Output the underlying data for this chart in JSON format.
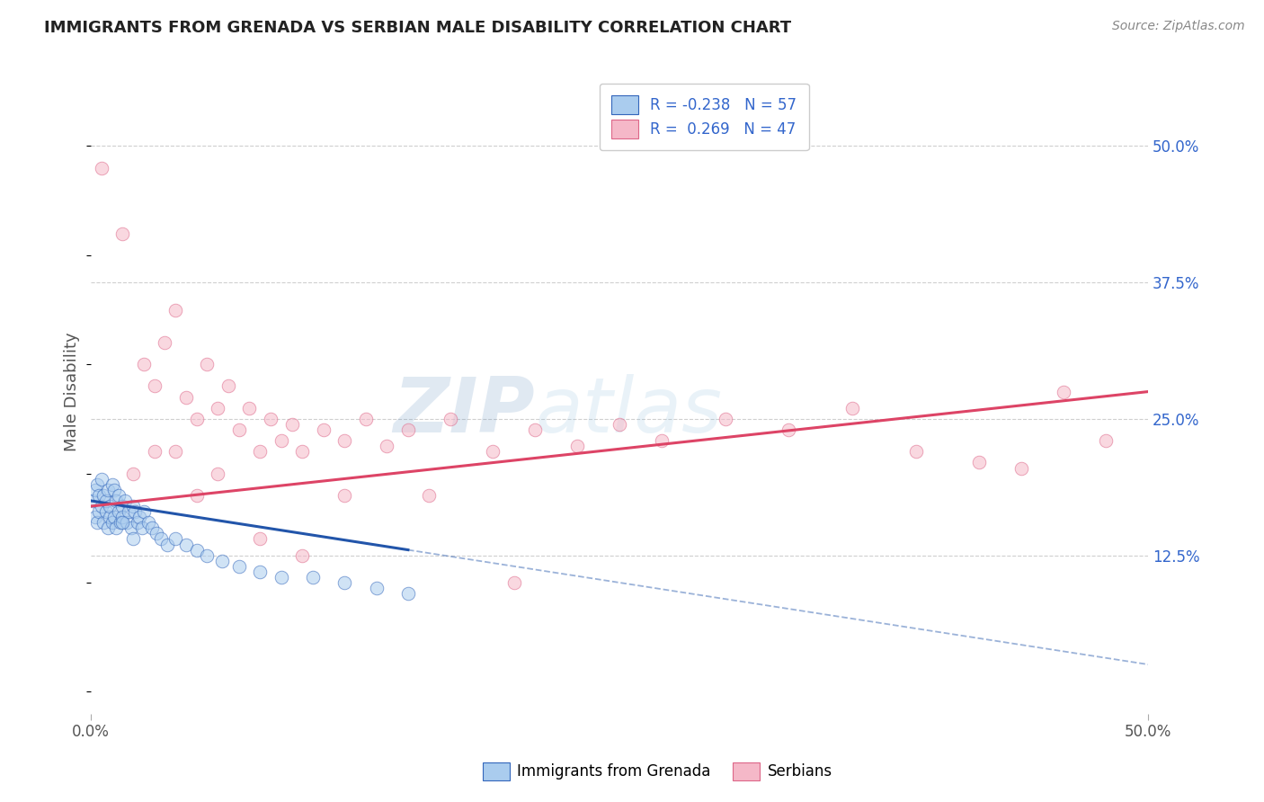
{
  "title": "IMMIGRANTS FROM GRENADA VS SERBIAN MALE DISABILITY CORRELATION CHART",
  "source": "Source: ZipAtlas.com",
  "ylabel": "Male Disability",
  "xlim": [
    0.0,
    50.0
  ],
  "ylim": [
    -2.0,
    57.0
  ],
  "watermark_zip": "ZIP",
  "watermark_atlas": "atlas",
  "legend_labels": [
    "Immigrants from Grenada",
    "Serbians"
  ],
  "R_blue": -0.238,
  "N_blue": 57,
  "R_pink": 0.269,
  "N_pink": 47,
  "blue_color": "#aaccee",
  "pink_color": "#f5b8c8",
  "blue_edge_color": "#3366bb",
  "pink_edge_color": "#dd6688",
  "blue_line_color": "#2255aa",
  "pink_line_color": "#dd4466",
  "dot_size": 110,
  "dot_alpha": 0.55,
  "blue_scatter_x": [
    0.1,
    0.2,
    0.2,
    0.3,
    0.3,
    0.4,
    0.4,
    0.5,
    0.5,
    0.6,
    0.6,
    0.7,
    0.7,
    0.8,
    0.8,
    0.9,
    0.9,
    1.0,
    1.0,
    1.1,
    1.1,
    1.2,
    1.2,
    1.3,
    1.3,
    1.4,
    1.5,
    1.5,
    1.6,
    1.7,
    1.8,
    1.9,
    2.0,
    2.1,
    2.2,
    2.3,
    2.4,
    2.5,
    2.7,
    2.9,
    3.1,
    3.3,
    3.6,
    4.0,
    4.5,
    5.0,
    5.5,
    6.2,
    7.0,
    8.0,
    9.0,
    10.5,
    12.0,
    13.5,
    15.0,
    2.0,
    1.5
  ],
  "blue_scatter_y": [
    17.5,
    16.0,
    18.5,
    15.5,
    19.0,
    16.5,
    18.0,
    17.0,
    19.5,
    15.5,
    18.0,
    16.5,
    17.5,
    15.0,
    18.5,
    16.0,
    17.0,
    15.5,
    19.0,
    16.0,
    18.5,
    15.0,
    17.5,
    16.5,
    18.0,
    15.5,
    17.0,
    16.0,
    17.5,
    15.5,
    16.5,
    15.0,
    17.0,
    16.5,
    15.5,
    16.0,
    15.0,
    16.5,
    15.5,
    15.0,
    14.5,
    14.0,
    13.5,
    14.0,
    13.5,
    13.0,
    12.5,
    12.0,
    11.5,
    11.0,
    10.5,
    10.5,
    10.0,
    9.5,
    9.0,
    14.0,
    15.5
  ],
  "pink_scatter_x": [
    0.5,
    1.5,
    2.5,
    3.0,
    3.5,
    4.0,
    4.5,
    5.0,
    5.5,
    6.0,
    6.5,
    7.0,
    7.5,
    8.0,
    8.5,
    9.0,
    9.5,
    10.0,
    11.0,
    12.0,
    13.0,
    14.0,
    15.0,
    17.0,
    19.0,
    21.0,
    23.0,
    25.0,
    27.0,
    30.0,
    33.0,
    36.0,
    39.0,
    42.0,
    44.0,
    46.0,
    48.0,
    2.0,
    3.0,
    5.0,
    8.0,
    12.0,
    4.0,
    6.0,
    10.0,
    16.0,
    20.0
  ],
  "pink_scatter_y": [
    48.0,
    42.0,
    30.0,
    28.0,
    32.0,
    35.0,
    27.0,
    25.0,
    30.0,
    26.0,
    28.0,
    24.0,
    26.0,
    22.0,
    25.0,
    23.0,
    24.5,
    22.0,
    24.0,
    23.0,
    25.0,
    22.5,
    24.0,
    25.0,
    22.0,
    24.0,
    22.5,
    24.5,
    23.0,
    25.0,
    24.0,
    26.0,
    22.0,
    21.0,
    20.5,
    27.5,
    23.0,
    20.0,
    22.0,
    18.0,
    14.0,
    18.0,
    22.0,
    20.0,
    12.5,
    18.0,
    10.0
  ],
  "background_color": "#ffffff",
  "grid_color": "#bbbbbb",
  "title_color": "#222222",
  "axis_label_color": "#555555",
  "ytick_color": "#3366cc",
  "xtick_color": "#555555"
}
